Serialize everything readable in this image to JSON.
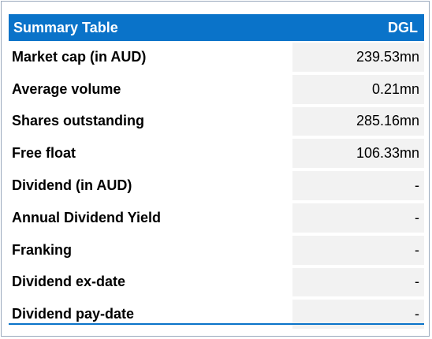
{
  "table": {
    "title": "Summary Table",
    "ticker": "DGL",
    "rows": [
      {
        "label": "Market cap (in AUD)",
        "value": "239.53mn"
      },
      {
        "label": "Average volume",
        "value": "0.21mn"
      },
      {
        "label": "Shares outstanding",
        "value": "285.16mn"
      },
      {
        "label": "Free float",
        "value": "106.33mn"
      },
      {
        "label": "Dividend (in AUD)",
        "value": "-"
      },
      {
        "label": "Annual Dividend Yield",
        "value": "-"
      },
      {
        "label": "Franking",
        "value": "-"
      },
      {
        "label": "Dividend ex-date",
        "value": "-"
      },
      {
        "label": "Dividend pay-date",
        "value": "-"
      }
    ]
  },
  "colors": {
    "header_bg": "#0a73c9",
    "value_bg": "#f2f2f2",
    "border": "#9aa9bd"
  }
}
